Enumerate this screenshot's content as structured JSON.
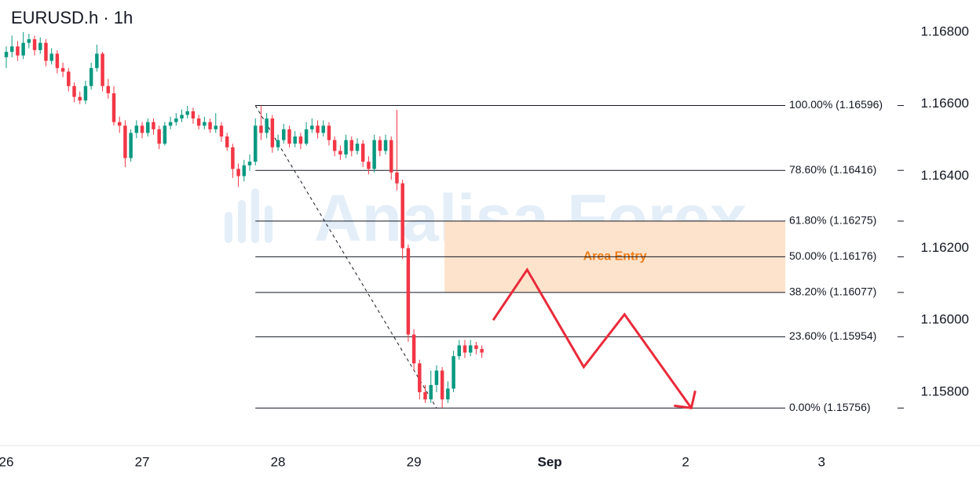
{
  "chart_data": {
    "type": "candlestick",
    "title": "EURUSD.h · 1h",
    "watermark": "Analisa Forex",
    "xlim": [
      -1.11,
      158.4
    ],
    "ylim": [
      1.15652,
      1.16889
    ],
    "xticks": [
      {
        "value": 0,
        "label": "26"
      },
      {
        "value": 24,
        "label": "27"
      },
      {
        "value": 48,
        "label": "28"
      },
      {
        "value": 72,
        "label": "29"
      },
      {
        "value": 96,
        "label": "Sep"
      },
      {
        "value": 120,
        "label": "2"
      },
      {
        "value": 144,
        "label": "3"
      }
    ],
    "yticks": [
      {
        "value": 1.158,
        "label": "1.15800"
      },
      {
        "value": 1.16,
        "label": "1.16000"
      },
      {
        "value": 1.162,
        "label": "1.16200"
      },
      {
        "value": 1.164,
        "label": "1.16400"
      },
      {
        "value": 1.166,
        "label": "1.16600"
      },
      {
        "value": 1.168,
        "label": "1.16800"
      }
    ],
    "up_color": "#089981",
    "down_color": "#f23645",
    "x": [
      0,
      1,
      2,
      3,
      4,
      5,
      6,
      7,
      8,
      9,
      10,
      11,
      12,
      13,
      14,
      15,
      16,
      17,
      18,
      19,
      20,
      21,
      22,
      23,
      24,
      25,
      26,
      27,
      28,
      29,
      30,
      31,
      32,
      33,
      34,
      35,
      36,
      37,
      38,
      39,
      40,
      41,
      42,
      43,
      44,
      45,
      46,
      47,
      48,
      49,
      50,
      51,
      52,
      53,
      54,
      55,
      56,
      57,
      58,
      59,
      60,
      61,
      62,
      63,
      64,
      65,
      66,
      67,
      68,
      69,
      70,
      71,
      72,
      73,
      74,
      75,
      76,
      77,
      78,
      79,
      80,
      81,
      82,
      83,
      84
    ],
    "open": [
      1.1673,
      1.16745,
      1.1676,
      1.16735,
      1.1677,
      1.1678,
      1.1675,
      1.1677,
      1.1672,
      1.1674,
      1.167,
      1.1669,
      1.1665,
      1.1662,
      1.1661,
      1.1665,
      1.167,
      1.1674,
      1.1665,
      1.1663,
      1.1655,
      1.1654,
      1.1645,
      1.1652,
      1.1654,
      1.1652,
      1.1655,
      1.1653,
      1.1649,
      1.1654,
      1.1655,
      1.1656,
      1.1657,
      1.1658,
      1.1656,
      1.1654,
      1.1655,
      1.1653,
      1.1654,
      1.1651,
      1.1648,
      1.1642,
      1.164,
      1.1643,
      1.1644,
      1.1654,
      1.1652,
      1.1656,
      1.1648,
      1.165,
      1.1653,
      1.1649,
      1.1651,
      1.1649,
      1.1653,
      1.1654,
      1.1652,
      1.1654,
      1.165,
      1.1647,
      1.1646,
      1.165,
      1.1647,
      1.1649,
      1.1644,
      1.1642,
      1.165,
      1.1647,
      1.165,
      1.1641,
      1.1638,
      1.162,
      1.1596,
      1.1588,
      1.158,
      1.1578,
      1.1582,
      1.1586,
      1.1578,
      1.1581,
      1.159,
      1.1593,
      1.1591,
      1.1593,
      1.1592
    ],
    "high": [
      1.1676,
      1.1679,
      1.16775,
      1.168,
      1.16795,
      1.1679,
      1.16785,
      1.1678,
      1.16755,
      1.1675,
      1.16715,
      1.167,
      1.1666,
      1.16635,
      1.16665,
      1.16715,
      1.16765,
      1.16745,
      1.1667,
      1.1665,
      1.16565,
      1.16555,
      1.1653,
      1.16555,
      1.1655,
      1.1656,
      1.1656,
      1.1654,
      1.1655,
      1.16565,
      1.16575,
      1.16585,
      1.16595,
      1.1659,
      1.1657,
      1.16565,
      1.1656,
      1.16575,
      1.1655,
      1.1652,
      1.1649,
      1.16435,
      1.16445,
      1.1646,
      1.1656,
      1.16596,
      1.16575,
      1.1657,
      1.16515,
      1.16545,
      1.1654,
      1.16525,
      1.1652,
      1.1655,
      1.1656,
      1.16555,
      1.16555,
      1.1655,
      1.1651,
      1.16485,
      1.16515,
      1.1651,
      1.16505,
      1.165,
      1.16455,
      1.16515,
      1.1651,
      1.16515,
      1.1651,
      1.16584,
      1.1639,
      1.1621,
      1.15975,
      1.1589,
      1.1582,
      1.1586,
      1.15875,
      1.1587,
      1.1583,
      1.15915,
      1.15945,
      1.15945,
      1.15945,
      1.1594,
      1.1593
    ],
    "low": [
      1.167,
      1.1673,
      1.1672,
      1.16725,
      1.16755,
      1.16735,
      1.1674,
      1.16705,
      1.1671,
      1.16685,
      1.16675,
      1.16635,
      1.16605,
      1.166,
      1.166,
      1.1664,
      1.1669,
      1.16635,
      1.16615,
      1.1654,
      1.1652,
      1.16425,
      1.1644,
      1.16505,
      1.16505,
      1.1651,
      1.16515,
      1.16475,
      1.16485,
      1.1653,
      1.1654,
      1.1655,
      1.1656,
      1.16545,
      1.1653,
      1.1653,
      1.1652,
      1.1652,
      1.16495,
      1.1647,
      1.16395,
      1.1637,
      1.16385,
      1.16415,
      1.1643,
      1.165,
      1.16505,
      1.16465,
      1.1647,
      1.1649,
      1.1648,
      1.1648,
      1.16475,
      1.16485,
      1.1652,
      1.16505,
      1.1651,
      1.16485,
      1.16455,
      1.16445,
      1.1645,
      1.16455,
      1.1646,
      1.16425,
      1.16405,
      1.1641,
      1.16455,
      1.1646,
      1.1639,
      1.1636,
      1.1617,
      1.1594,
      1.1586,
      1.1578,
      1.1577,
      1.1577,
      1.158,
      1.15756,
      1.1577,
      1.158,
      1.1589,
      1.15895,
      1.159,
      1.15905,
      1.15895
    ],
    "close": [
      1.16745,
      1.1676,
      1.16735,
      1.1677,
      1.1678,
      1.1675,
      1.1677,
      1.1672,
      1.1674,
      1.167,
      1.1669,
      1.1665,
      1.1662,
      1.1661,
      1.1665,
      1.167,
      1.1674,
      1.1665,
      1.1663,
      1.1655,
      1.1654,
      1.1645,
      1.1652,
      1.1654,
      1.1652,
      1.1655,
      1.1653,
      1.1649,
      1.1654,
      1.1655,
      1.1656,
      1.1657,
      1.1658,
      1.1656,
      1.1654,
      1.1655,
      1.1653,
      1.1654,
      1.1651,
      1.1648,
      1.1642,
      1.164,
      1.1643,
      1.1644,
      1.1654,
      1.1652,
      1.1656,
      1.1648,
      1.165,
      1.1653,
      1.1649,
      1.1651,
      1.1649,
      1.1653,
      1.1654,
      1.1652,
      1.1654,
      1.165,
      1.1647,
      1.1646,
      1.165,
      1.1647,
      1.1649,
      1.1644,
      1.1642,
      1.165,
      1.1647,
      1.165,
      1.1641,
      1.1638,
      1.162,
      1.1596,
      1.1588,
      1.158,
      1.1578,
      1.1582,
      1.1586,
      1.1578,
      1.1581,
      1.159,
      1.1593,
      1.1591,
      1.1593,
      1.1592,
      1.1591
    ],
    "fib_x": [
      44,
      137.6
    ],
    "fib_levels": [
      {
        "value": 1.16596,
        "label": "100.00% (1.16596)"
      },
      {
        "value": 1.16416,
        "label": "78.60% (1.16416)"
      },
      {
        "value": 1.16275,
        "label": "61.80% (1.16275)"
      },
      {
        "value": 1.16176,
        "label": "50.00% (1.16176)"
      },
      {
        "value": 1.16077,
        "label": "38.20% (1.16077)"
      },
      {
        "value": 1.15954,
        "label": "23.60% (1.15954)"
      },
      {
        "value": 1.15756,
        "label": "0.00% (1.15756)"
      }
    ],
    "zone": {
      "label": "Area Entry",
      "x": [
        77.4,
        137.6
      ],
      "y": [
        1.16077,
        1.16275
      ],
      "color": "#fde3cc",
      "label_color": "#f07f1a"
    },
    "trendline": {
      "x": [
        44,
        76
      ],
      "y": [
        1.16596,
        1.15756
      ]
    },
    "projection": {
      "color": "#ea2a3a",
      "x": [
        86,
        92,
        102,
        109.2,
        121
      ],
      "y": [
        1.16,
        1.1614,
        1.1587,
        1.16016,
        1.15756
      ]
    }
  }
}
